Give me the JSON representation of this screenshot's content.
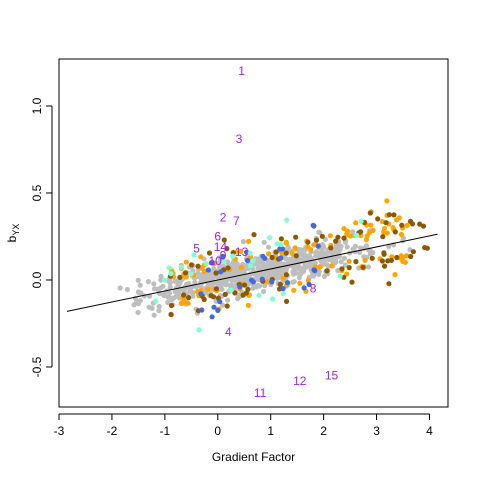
{
  "chart_data": {
    "type": "scatter",
    "xlabel": "Gradient Factor",
    "ylabel_main": "b",
    "ylabel_sub": "YX",
    "xlim": [
      -3.0,
      4.35
    ],
    "ylim": [
      -0.73,
      1.27
    ],
    "x_ticks": [
      -3,
      -2,
      -1,
      0,
      1,
      2,
      3,
      4
    ],
    "x_tick_labels": [
      "-3",
      "-2",
      "-1",
      "0",
      "1",
      "2",
      "3",
      "4"
    ],
    "y_ticks": [
      -0.5,
      0.0,
      0.5,
      1.0
    ],
    "y_tick_labels": [
      "-0.5",
      "0.0",
      "0.5",
      "1.0"
    ],
    "grid": false,
    "regression_line": {
      "intercept": 0.0,
      "slope": 0.0633,
      "x": [
        -2.85,
        4.15
      ]
    },
    "colors": {
      "background_points": "#bebebe",
      "orange": "#ffa500",
      "brown": "#8b5a00",
      "blue": "#4169e1",
      "aquamarine": "#7fffd4",
      "labels": "#a020f0",
      "line": "#000000"
    },
    "scatter_cloud": {
      "series": [
        {
          "color_key": "background_points",
          "approx_count": 700,
          "x_range": [
            -2.8,
            4.1
          ],
          "slope": 0.0633,
          "spread": 0.05
        },
        {
          "color_key": "orange",
          "approx_count": 110,
          "x_range": [
            -0.9,
            3.6
          ],
          "slope": 0.0633,
          "spread": 0.075
        },
        {
          "color_key": "brown",
          "approx_count": 90,
          "x_range": [
            -0.9,
            4.1
          ],
          "slope": 0.0633,
          "spread": 0.075
        },
        {
          "color_key": "blue",
          "approx_count": 30,
          "x_range": [
            -0.4,
            1.9
          ],
          "slope": 0.0633,
          "spread": 0.08
        },
        {
          "color_key": "aquamarine",
          "approx_count": 25,
          "x_range": [
            -1.2,
            3.1
          ],
          "slope": 0.0633,
          "spread": 0.09
        }
      ]
    },
    "labeled_points": [
      {
        "label": "1",
        "x": 0.45,
        "y": 1.2
      },
      {
        "label": "3",
        "x": 0.4,
        "y": 0.81
      },
      {
        "label": "2",
        "x": 0.1,
        "y": 0.36
      },
      {
        "label": "7",
        "x": 0.35,
        "y": 0.34
      },
      {
        "label": "5",
        "x": -0.4,
        "y": 0.18
      },
      {
        "label": "14",
        "x": 0.05,
        "y": 0.19
      },
      {
        "label": "13",
        "x": 0.45,
        "y": 0.16
      },
      {
        "label": "6",
        "x": 0.0,
        "y": 0.25
      },
      {
        "label": "9",
        "x": 0.1,
        "y": 0.14
      },
      {
        "label": "10",
        "x": -0.05,
        "y": 0.11
      },
      {
        "label": "8",
        "x": 1.8,
        "y": -0.05
      },
      {
        "label": "4",
        "x": 0.2,
        "y": -0.3
      },
      {
        "label": "15",
        "x": 2.15,
        "y": -0.55
      },
      {
        "label": "12",
        "x": 1.55,
        "y": -0.58
      },
      {
        "label": "11",
        "x": 0.8,
        "y": -0.65
      }
    ]
  }
}
